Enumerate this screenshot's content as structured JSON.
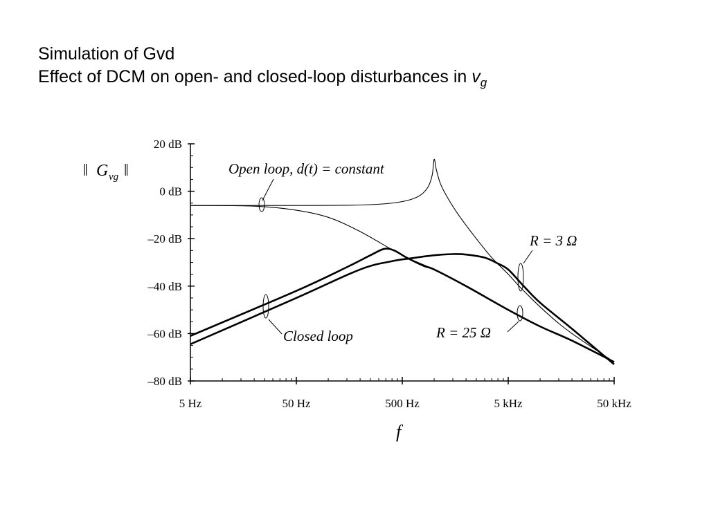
{
  "slide": {
    "title_line1": "Simulation of Gvd",
    "title_line2": "Effect of DCM on open- and closed-loop disturbances in ",
    "title_var": "v",
    "title_sub": "g"
  },
  "chart_data": {
    "type": "line",
    "title": "",
    "xlabel": "f",
    "ylabel": "|| G_vg ||",
    "ylabel_main": "G",
    "ylabel_sub": "vg",
    "xscale": "log",
    "xlim": [
      5,
      50000
    ],
    "ylim": [
      -80,
      20
    ],
    "x_ticks": [
      5,
      50,
      500,
      5000,
      50000
    ],
    "x_tick_labels": [
      "5 Hz",
      "50 Hz",
      "500 Hz",
      "5 kHz",
      "50 kHz"
    ],
    "y_ticks": [
      20,
      0,
      -20,
      -40,
      -60,
      -80
    ],
    "y_tick_labels": [
      "20 dB",
      "0 dB",
      "–20 dB",
      "–40 dB",
      "–60 dB",
      "–80 dB"
    ],
    "grid": false,
    "annotations": {
      "open_loop": "Open loop, d(t) = constant",
      "closed_loop": "Closed loop",
      "r3": "R = 3 Ω",
      "r25": "R = 25 Ω"
    },
    "series": [
      {
        "name": "Open loop, R = 3 Ω",
        "style": "thin",
        "x": [
          5,
          50,
          200,
          400,
          600,
          750,
          880,
          960,
          1000,
          1050,
          1150,
          1350,
          1700,
          2500,
          3500,
          5000,
          7000,
          12000,
          20000,
          50000
        ],
        "y": [
          -6,
          -6,
          -5.8,
          -5,
          -3.5,
          -1.5,
          2,
          7,
          13.5,
          9,
          3,
          -3,
          -10,
          -20,
          -28,
          -35,
          -42,
          -52,
          -60,
          -72
        ]
      },
      {
        "name": "Open loop, R = 25 Ω",
        "style": "thin",
        "x": [
          5,
          20,
          50,
          100,
          200,
          500,
          1000,
          2000,
          5000,
          10000,
          20000,
          50000
        ],
        "y": [
          -6,
          -6.3,
          -8,
          -11,
          -17,
          -27,
          -33,
          -40,
          -50,
          -57,
          -63,
          -72
        ]
      },
      {
        "name": "Closed loop, R = 25 Ω",
        "style": "thick",
        "x": [
          5,
          50,
          150,
          250,
          338,
          420,
          550,
          800,
          1000,
          2000,
          5000,
          10000,
          20000,
          50000
        ],
        "y": [
          -61,
          -42,
          -32,
          -27,
          -24.3,
          -25,
          -28,
          -31.5,
          -33,
          -40,
          -50,
          -57,
          -63,
          -72
        ]
      },
      {
        "name": "Closed loop, R = 3 Ω",
        "style": "thick",
        "x": [
          5,
          50,
          200,
          400,
          600,
          1000,
          1500,
          2000,
          3000,
          4000,
          5000,
          7000,
          10000,
          20000,
          50000
        ],
        "y": [
          -64.5,
          -45,
          -33,
          -29.5,
          -28.3,
          -27,
          -26.5,
          -26.7,
          -28,
          -30.5,
          -33,
          -40,
          -47,
          -58,
          -73
        ]
      }
    ]
  }
}
